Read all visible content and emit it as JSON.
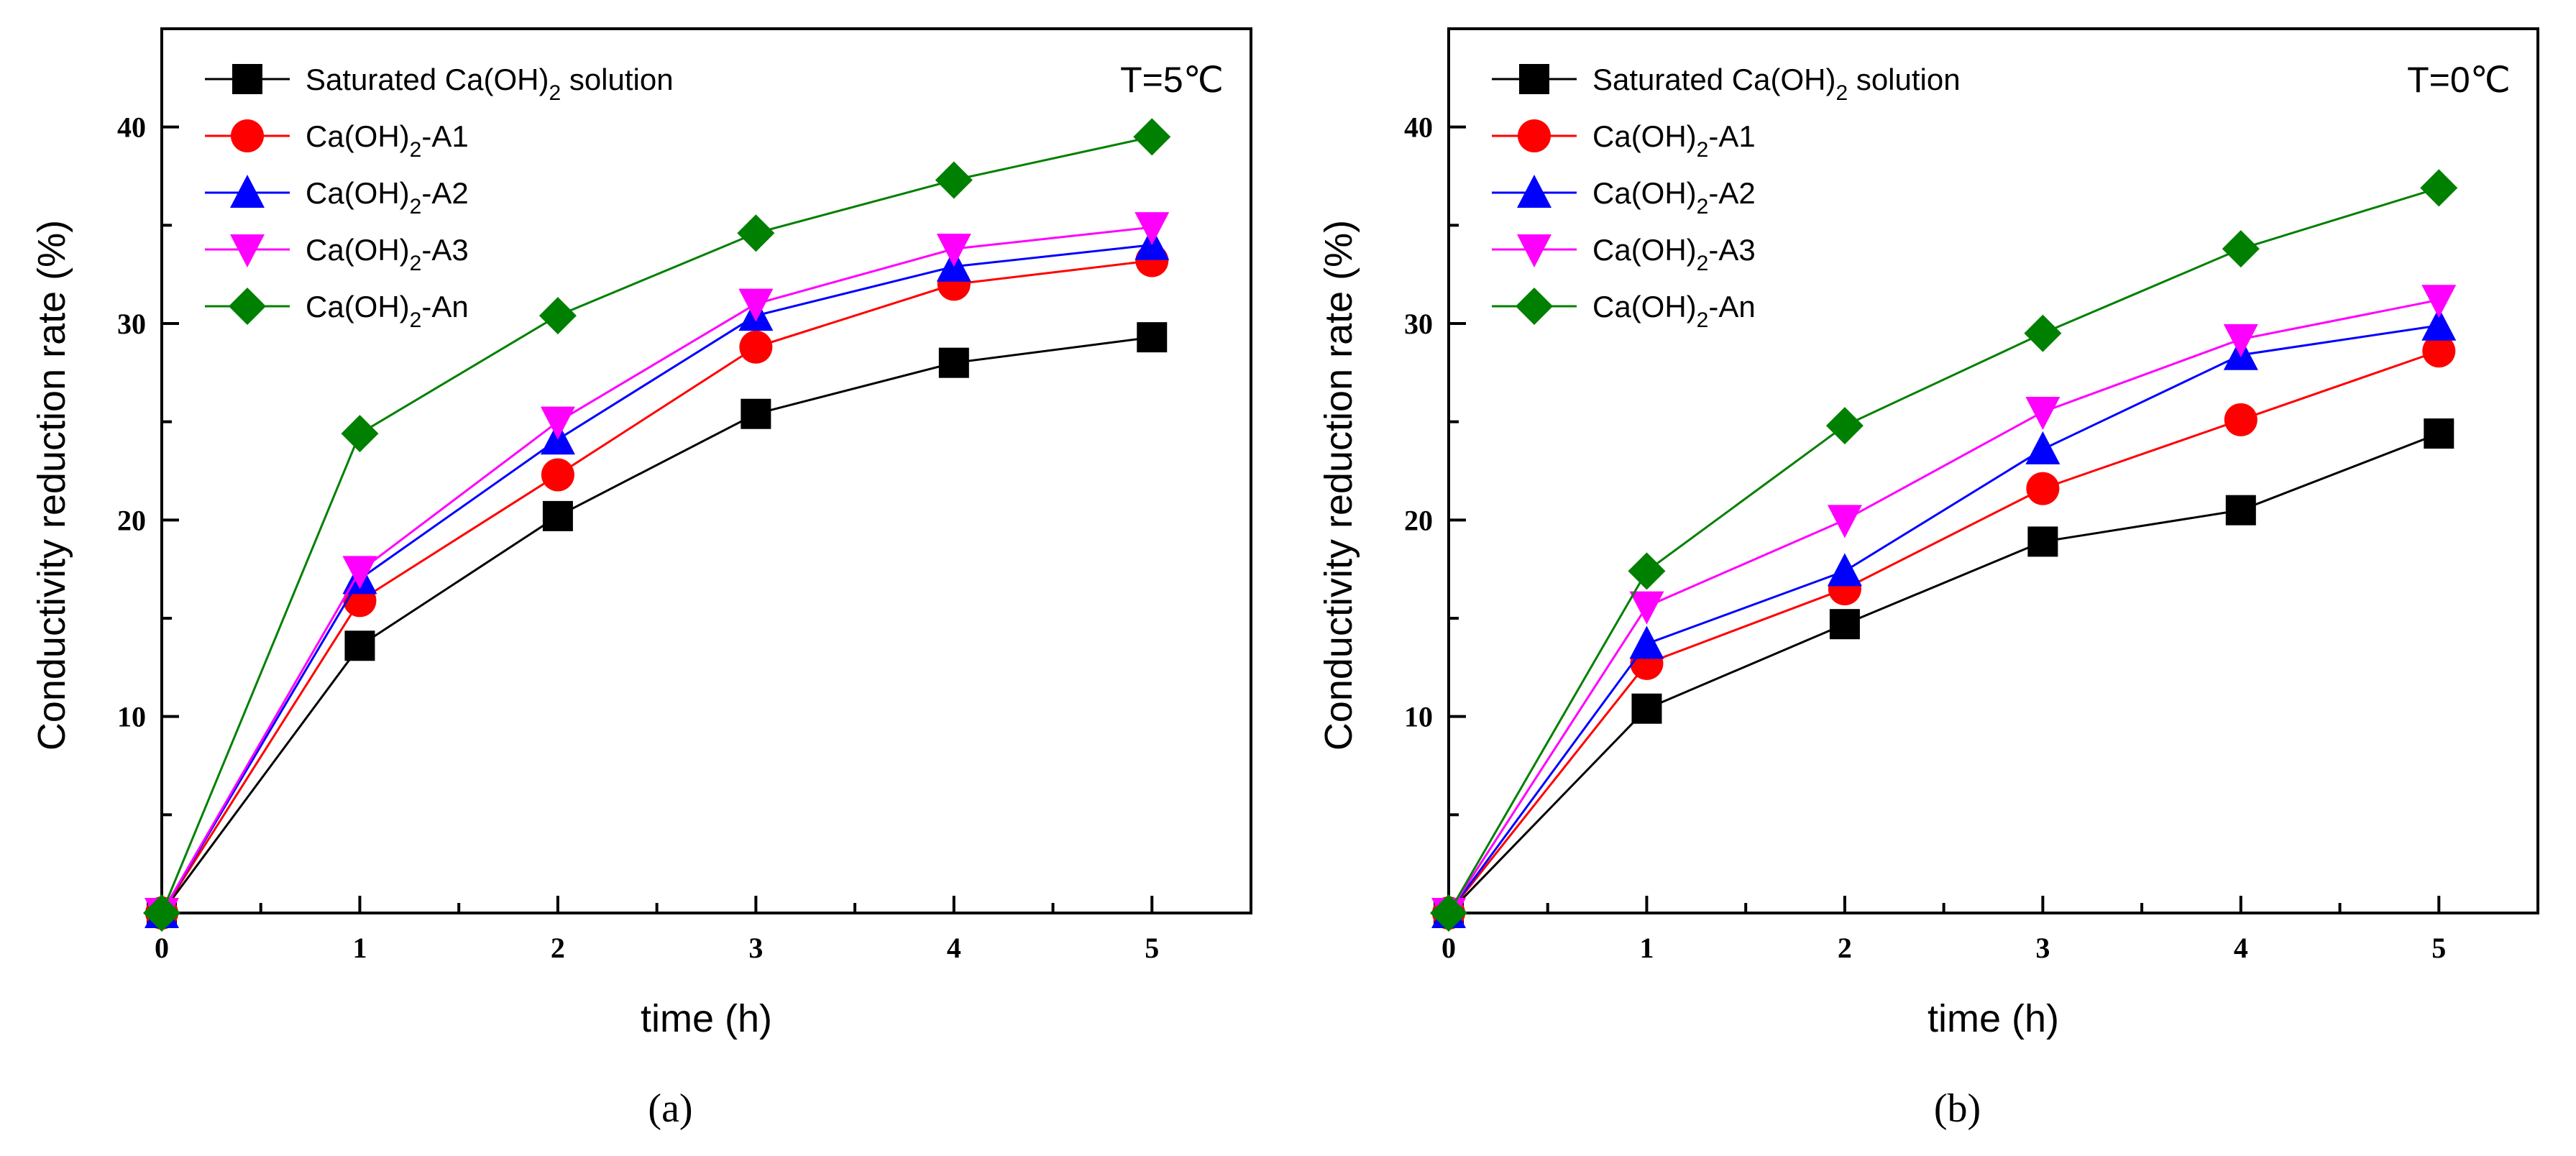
{
  "chart_data": [
    {
      "type": "line",
      "panel": "(a)",
      "panel_letter": "a",
      "temperature_label": "T=5℃",
      "xlabel": "time (h)",
      "ylabel": "Conductivity reduction rate (%)",
      "xlim": [
        0,
        5.5
      ],
      "ylim": [
        0,
        45
      ],
      "x_ticks": [
        0,
        1,
        2,
        3,
        4,
        5
      ],
      "y_ticks": [
        10,
        20,
        30,
        40
      ],
      "legend_position": "top-left",
      "x": [
        0,
        1,
        2,
        3,
        4,
        5
      ],
      "series": [
        {
          "name": "Saturated Ca(OH)2 solution",
          "legend": {
            "pre": "Saturated Ca(OH)",
            "sub": "2",
            "post": " solution"
          },
          "color": "#000000",
          "marker": "square",
          "values": [
            0,
            13.6,
            20.2,
            25.4,
            28.0,
            29.3
          ]
        },
        {
          "name": "Ca(OH)2-A1",
          "legend": {
            "pre": "Ca(OH)",
            "sub": "2",
            "post": "-A1"
          },
          "color": "#ff0000",
          "marker": "circle",
          "values": [
            0,
            15.9,
            22.3,
            28.8,
            32.0,
            33.2
          ]
        },
        {
          "name": "Ca(OH)2-A2",
          "legend": {
            "pre": "Ca(OH)",
            "sub": "2",
            "post": "-A2"
          },
          "color": "#0000ff",
          "marker": "triangle-up",
          "values": [
            0,
            17.0,
            24.1,
            30.4,
            32.9,
            34.0
          ]
        },
        {
          "name": "Ca(OH)2-A3",
          "legend": {
            "pre": "Ca(OH)",
            "sub": "2",
            "post": "-A3"
          },
          "color": "#ff00ff",
          "marker": "triangle-down",
          "values": [
            0,
            17.4,
            25.0,
            31.0,
            33.8,
            34.9
          ]
        },
        {
          "name": "Ca(OH)2-An",
          "legend": {
            "pre": "Ca(OH)",
            "sub": "2",
            "post": "-An"
          },
          "color": "#008000",
          "marker": "diamond",
          "values": [
            0,
            24.4,
            30.4,
            34.6,
            37.3,
            39.5
          ]
        }
      ]
    },
    {
      "type": "line",
      "panel": "(b)",
      "panel_letter": "b",
      "temperature_label": "T=0℃",
      "xlabel": "time (h)",
      "ylabel": "Conductivity reduction rate (%)",
      "xlim": [
        0,
        5.5
      ],
      "ylim": [
        0,
        45
      ],
      "x_ticks": [
        0,
        1,
        2,
        3,
        4,
        5
      ],
      "y_ticks": [
        10,
        20,
        30,
        40
      ],
      "legend_position": "top-left",
      "x": [
        0,
        1,
        2,
        3,
        4,
        5
      ],
      "series": [
        {
          "name": "Saturated Ca(OH)2 solution",
          "legend": {
            "pre": "Saturated Ca(OH)",
            "sub": "2",
            "post": " solution"
          },
          "color": "#000000",
          "marker": "square",
          "values": [
            0,
            10.4,
            14.7,
            18.9,
            20.5,
            24.4
          ]
        },
        {
          "name": "Ca(OH)2-A1",
          "legend": {
            "pre": "Ca(OH)",
            "sub": "2",
            "post": "-A1"
          },
          "color": "#ff0000",
          "marker": "circle",
          "values": [
            0,
            12.7,
            16.5,
            21.6,
            25.1,
            28.6
          ]
        },
        {
          "name": "Ca(OH)2-A2",
          "legend": {
            "pre": "Ca(OH)",
            "sub": "2",
            "post": "-A2"
          },
          "color": "#0000ff",
          "marker": "triangle-up",
          "values": [
            0,
            13.7,
            17.4,
            23.6,
            28.4,
            29.9
          ]
        },
        {
          "name": "Ca(OH)2-A3",
          "legend": {
            "pre": "Ca(OH)",
            "sub": "2",
            "post": "-A3"
          },
          "color": "#ff00ff",
          "marker": "triangle-down",
          "values": [
            0,
            15.6,
            20.0,
            25.5,
            29.2,
            31.2
          ]
        },
        {
          "name": "Ca(OH)2-An",
          "legend": {
            "pre": "Ca(OH)",
            "sub": "2",
            "post": "-An"
          },
          "color": "#008000",
          "marker": "diamond",
          "values": [
            0,
            17.4,
            24.8,
            29.5,
            33.8,
            36.9
          ]
        }
      ]
    }
  ]
}
